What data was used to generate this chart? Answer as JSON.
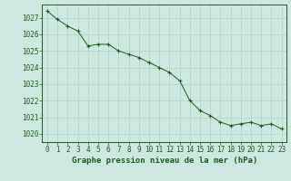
{
  "x": [
    0,
    1,
    2,
    3,
    4,
    5,
    6,
    7,
    8,
    9,
    10,
    11,
    12,
    13,
    14,
    15,
    16,
    17,
    18,
    19,
    20,
    21,
    22,
    23
  ],
  "y": [
    1027.4,
    1026.9,
    1026.5,
    1026.2,
    1025.3,
    1025.4,
    1025.4,
    1025.0,
    1024.8,
    1024.6,
    1024.3,
    1024.0,
    1023.7,
    1023.2,
    1022.0,
    1021.4,
    1021.1,
    1020.7,
    1020.5,
    1020.6,
    1020.7,
    1020.5,
    1020.6,
    1020.3
  ],
  "ylim": [
    1019.5,
    1027.8
  ],
  "yticks": [
    1020,
    1021,
    1022,
    1023,
    1024,
    1025,
    1026,
    1027
  ],
  "xlim": [
    -0.5,
    23.5
  ],
  "xticks": [
    0,
    1,
    2,
    3,
    4,
    5,
    6,
    7,
    8,
    9,
    10,
    11,
    12,
    13,
    14,
    15,
    16,
    17,
    18,
    19,
    20,
    21,
    22,
    23
  ],
  "xlabel": "Graphe pression niveau de la mer (hPa)",
  "line_color": "#1a5c1a",
  "marker_color": "#1a5c1a",
  "bg_color": "#cce8e0",
  "grid_color": "#aad4c8",
  "tick_label_fontsize": 5.5,
  "xlabel_fontsize": 6.5
}
